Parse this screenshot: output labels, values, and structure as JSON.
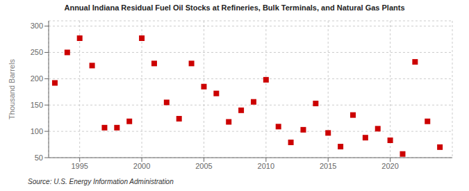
{
  "chart_data": {
    "type": "scatter",
    "title": "Annual Indiana Residual Fuel Oil Stocks at Refineries, Bulk Terminals, and Natural Gas Plants",
    "ylabel": "Thousand Barrels",
    "annotations": [
      "Source: U.S. Energy Information Administration"
    ],
    "x": [
      1993,
      1994,
      1995,
      1996,
      1997,
      1998,
      1999,
      2000,
      2001,
      2002,
      2003,
      2004,
      2005,
      2006,
      2007,
      2008,
      2009,
      2010,
      2011,
      2012,
      2013,
      2014,
      2015,
      2016,
      2017,
      2018,
      2019,
      2020,
      2021,
      2022,
      2023,
      2024
    ],
    "values": [
      192,
      250,
      277,
      225,
      107,
      107,
      119,
      277,
      229,
      155,
      124,
      229,
      185,
      172,
      118,
      140,
      156,
      198,
      109,
      79,
      103,
      153,
      97,
      71,
      131,
      88,
      105,
      83,
      57,
      232,
      119,
      70
    ],
    "color": "#cc0000",
    "marker": "square",
    "xlim": [
      1992.5,
      2025
    ],
    "ylim": [
      50,
      310
    ],
    "xticks": [
      1995,
      2000,
      2005,
      2010,
      2015,
      2020
    ],
    "yticks": [
      50,
      100,
      150,
      200,
      250,
      300
    ],
    "grid": true
  }
}
